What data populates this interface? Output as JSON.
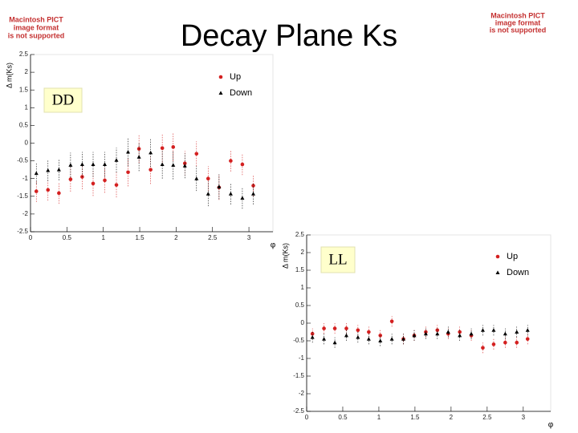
{
  "title": "Decay Plane Ks",
  "placeholders": [
    [
      "Macintosh PICT",
      "image format",
      "is not supported"
    ],
    [
      "Macintosh PICT",
      "image format",
      "is not supported"
    ]
  ],
  "chart_data": [
    {
      "type": "scatter",
      "label": "DD",
      "y_label": "Δ m(Ks)",
      "x_label": "φ",
      "x": [
        0.08,
        0.24,
        0.39,
        0.55,
        0.71,
        0.86,
        1.02,
        1.18,
        1.34,
        1.49,
        1.65,
        1.81,
        1.96,
        2.12,
        2.28,
        2.44,
        2.59,
        2.75,
        2.91,
        3.06
      ],
      "xlim": [
        0,
        3.33
      ],
      "ylim": [
        -2.5,
        2.5
      ],
      "xticks": [
        0,
        0.5,
        1,
        1.5,
        2,
        2.5,
        3
      ],
      "yticks": [
        -2.5,
        -2,
        -1.5,
        -1,
        -0.5,
        0,
        0.5,
        1,
        1.5,
        2,
        2.5
      ],
      "series": [
        {
          "name": "Up",
          "color": "#d42020",
          "marker": "circle",
          "values": [
            -1.36,
            -1.32,
            -1.41,
            -1.02,
            -0.95,
            -1.14,
            -1.05,
            -1.18,
            -0.82,
            -0.16,
            -0.75,
            -0.14,
            -0.11,
            -0.57,
            -0.3,
            -1.0,
            -1.25,
            -0.5,
            -0.6,
            -1.2
          ],
          "errors": [
            0.3,
            0.3,
            0.3,
            0.35,
            0.35,
            0.35,
            0.35,
            0.35,
            0.4,
            0.4,
            0.4,
            0.4,
            0.4,
            0.35,
            0.35,
            0.35,
            0.35,
            0.3,
            0.3,
            0.3
          ]
        },
        {
          "name": "Down",
          "color": "#000000",
          "marker": "triangle",
          "values": [
            -0.85,
            -0.77,
            -0.75,
            -0.62,
            -0.6,
            -0.6,
            -0.6,
            -0.48,
            -0.25,
            -0.39,
            -0.27,
            -0.6,
            -0.62,
            -0.64,
            -1.0,
            -1.43,
            -1.23,
            -1.43,
            -1.55,
            -1.43
          ],
          "errors": [
            0.3,
            0.3,
            0.3,
            0.35,
            0.35,
            0.35,
            0.35,
            0.35,
            0.4,
            0.4,
            0.4,
            0.4,
            0.4,
            0.35,
            0.35,
            0.35,
            0.35,
            0.3,
            0.3,
            0.3
          ]
        }
      ],
      "legend": "upper right"
    },
    {
      "type": "scatter",
      "label": "LL",
      "y_label": "Δ m(Ks)",
      "x_label": "φ",
      "x": [
        0.08,
        0.24,
        0.39,
        0.55,
        0.71,
        0.86,
        1.02,
        1.18,
        1.34,
        1.49,
        1.65,
        1.81,
        1.96,
        2.12,
        2.28,
        2.44,
        2.59,
        2.75,
        2.91,
        3.06
      ],
      "xlim": [
        0,
        3.38
      ],
      "ylim": [
        -2.5,
        2.5
      ],
      "xticks": [
        0,
        0.5,
        1,
        1.5,
        2,
        2.5,
        3
      ],
      "yticks": [
        -2.5,
        -2,
        -1.5,
        -1,
        -0.5,
        0,
        0.5,
        1,
        1.5,
        2,
        2.5
      ],
      "series": [
        {
          "name": "Up",
          "color": "#d42020",
          "marker": "circle",
          "values": [
            -0.3,
            -0.15,
            -0.15,
            -0.15,
            -0.2,
            -0.25,
            -0.35,
            0.05,
            -0.45,
            -0.35,
            -0.25,
            -0.2,
            -0.3,
            -0.25,
            -0.35,
            -0.7,
            -0.6,
            -0.55,
            -0.55,
            -0.45
          ],
          "errors": [
            0.15,
            0.15,
            0.15,
            0.15,
            0.15,
            0.15,
            0.15,
            0.15,
            0.15,
            0.15,
            0.15,
            0.15,
            0.15,
            0.15,
            0.15,
            0.15,
            0.15,
            0.15,
            0.15,
            0.15
          ]
        },
        {
          "name": "Down",
          "color": "#000000",
          "marker": "triangle",
          "values": [
            -0.4,
            -0.45,
            -0.55,
            -0.35,
            -0.4,
            -0.45,
            -0.5,
            -0.45,
            -0.45,
            -0.35,
            -0.3,
            -0.3,
            -0.25,
            -0.35,
            -0.3,
            -0.2,
            -0.2,
            -0.3,
            -0.25,
            -0.2
          ],
          "errors": [
            0.15,
            0.15,
            0.15,
            0.15,
            0.15,
            0.15,
            0.15,
            0.15,
            0.15,
            0.15,
            0.15,
            0.15,
            0.15,
            0.15,
            0.15,
            0.15,
            0.15,
            0.15,
            0.15,
            0.15
          ]
        }
      ],
      "legend": "upper right"
    }
  ]
}
